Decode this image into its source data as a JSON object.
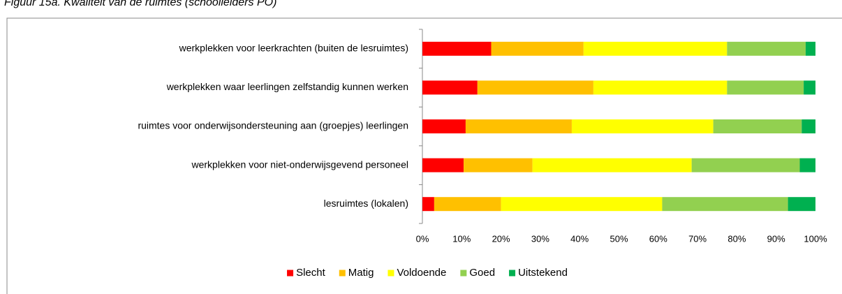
{
  "chart_data": {
    "type": "stacked-bar-horizontal",
    "title": "Figuur 15a. Kwaliteit van de ruimtes (schoolleiders PO)",
    "categories": [
      "werkplekken voor leerkrachten (buiten de lesruimtes)",
      "werkplekken waar leerlingen zelfstandig kunnen werken",
      "ruimtes voor onderwijsondersteuning aan (groepjes) leerlingen",
      "werkplekken voor niet-onderwijsgevend personeel",
      "lesruimtes (lokalen)"
    ],
    "series": [
      {
        "name": "Slecht",
        "color": "#ff0000",
        "values": [
          17.5,
          14,
          11,
          10.5,
          3
        ]
      },
      {
        "name": "Matig",
        "color": "#ffc000",
        "values": [
          23.5,
          29.5,
          27,
          17.5,
          17
        ]
      },
      {
        "name": "Voldoende",
        "color": "#ffff00",
        "values": [
          36.5,
          34,
          36,
          40.5,
          41
        ]
      },
      {
        "name": "Goed",
        "color": "#92d050",
        "values": [
          20,
          19.5,
          22.5,
          27.5,
          32
        ]
      },
      {
        "name": "Uitstekend",
        "color": "#00b050",
        "values": [
          2.5,
          3,
          3.5,
          4,
          7
        ]
      }
    ],
    "xlim": [
      0,
      100
    ],
    "xticks": [
      {
        "value": 0,
        "label": "0%"
      },
      {
        "value": 10,
        "label": "10%"
      },
      {
        "value": 20,
        "label": "20%"
      },
      {
        "value": 30,
        "label": "30%"
      },
      {
        "value": 40,
        "label": "40%"
      },
      {
        "value": 50,
        "label": "50%"
      },
      {
        "value": 60,
        "label": "60%"
      },
      {
        "value": 70,
        "label": "70%"
      },
      {
        "value": 80,
        "label": "80%"
      },
      {
        "value": 90,
        "label": "90%"
      },
      {
        "value": 100,
        "label": "100%"
      }
    ],
    "legend": "bottom"
  }
}
